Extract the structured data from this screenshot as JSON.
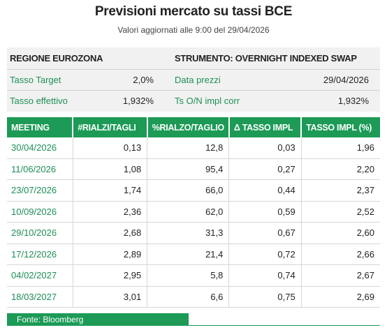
{
  "header": {
    "title": "Previsioni mercato su tassi BCE",
    "subtitle": "Valori aggiornati alle 9:00 del 29/04/2026"
  },
  "info": {
    "left": {
      "title": "REGIONE EUROZONA",
      "rows": [
        [
          "Tasso Target",
          "2,0%"
        ],
        [
          "Tasso effettivo",
          "1,932%"
        ]
      ]
    },
    "right": {
      "title": "STRUMENTO: OVERNIGHT INDEXED SWAP",
      "rows": [
        [
          "Data prezzi",
          "29/04/2026"
        ],
        [
          "Ts O/N impl corr",
          "1,932%"
        ]
      ]
    }
  },
  "table": {
    "columns": [
      "MEETING",
      "#RIALZI/TAGLI",
      "%RIALZO/TAGLIO",
      "Δ TASSO IMPL",
      "TASSO IMPL (%)"
    ],
    "rows": [
      [
        "30/04/2026",
        "0,13",
        "12,8",
        "0,03",
        "1,96"
      ],
      [
        "11/06/2026",
        "1,08",
        "95,4",
        "0,27",
        "2,20"
      ],
      [
        "23/07/2026",
        "1,74",
        "66,0",
        "0,44",
        "2,37"
      ],
      [
        "10/09/2026",
        "2,36",
        "62,0",
        "0,59",
        "2,52"
      ],
      [
        "29/10/2026",
        "2,68",
        "31,3",
        "0,67",
        "2,60"
      ],
      [
        "17/12/2026",
        "2,89",
        "21,4",
        "0,72",
        "2,66"
      ],
      [
        "04/02/2027",
        "2,95",
        "5,8",
        "0,74",
        "2,67"
      ],
      [
        "18/03/2027",
        "3,01",
        "6,6",
        "0,75",
        "2,69"
      ]
    ]
  },
  "footer": {
    "source": "Fonte: Bloomberg"
  }
}
